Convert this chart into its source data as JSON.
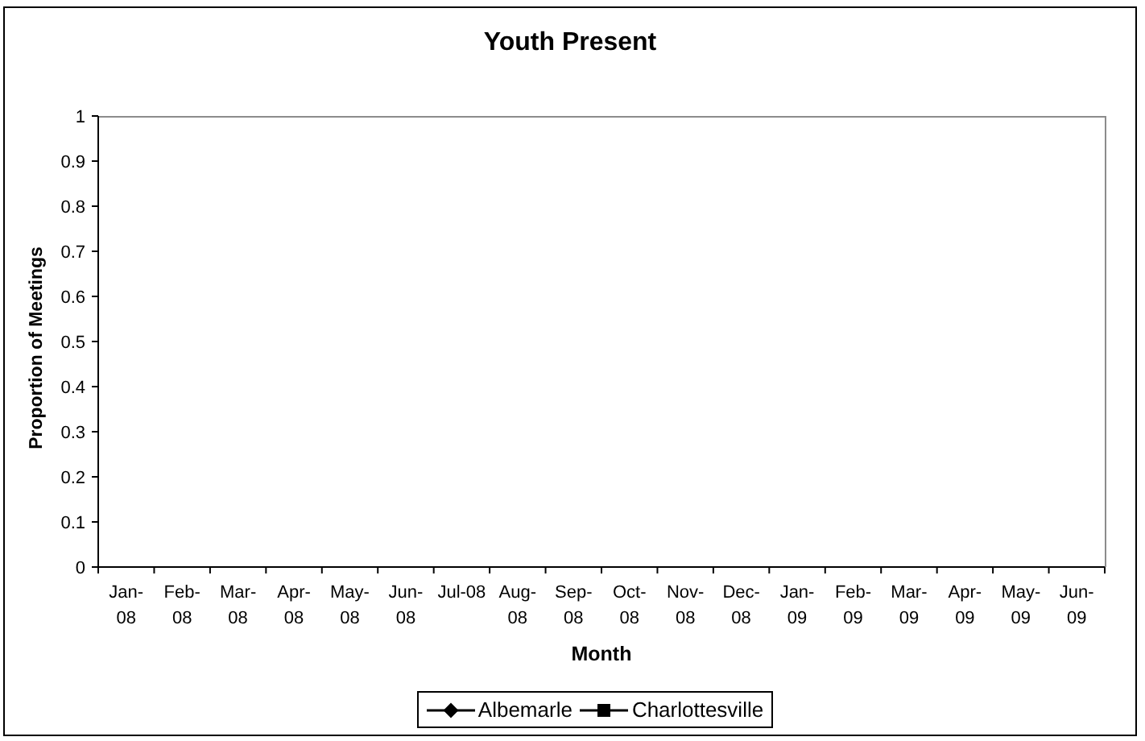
{
  "chart_data": {
    "type": "line",
    "title": "Youth Present",
    "xlabel": "Month",
    "ylabel": "Proportion of Meetings",
    "categories": [
      "Jan-08",
      "Feb-08",
      "Mar-08",
      "Apr-08",
      "May-08",
      "Jun-08",
      "Jul-08",
      "Aug-08",
      "Sep-08",
      "Oct-08",
      "Nov-08",
      "Dec-08",
      "Jan-09",
      "Feb-09",
      "Mar-09",
      "Apr-09",
      "May-09",
      "Jun-09"
    ],
    "series": [
      {
        "name": "Albemarle",
        "color": "#000000",
        "marker": "diamond",
        "values": [
          null,
          null,
          null,
          null,
          null,
          null,
          null,
          null,
          null,
          null,
          null,
          null,
          null,
          null,
          null,
          null,
          null,
          null
        ]
      },
      {
        "name": "Charlottesville",
        "color": "#000000",
        "marker": "square",
        "values": [
          null,
          null,
          null,
          null,
          null,
          null,
          null,
          null,
          null,
          null,
          null,
          null,
          null,
          null,
          null,
          null,
          null,
          null
        ]
      }
    ],
    "ylim": [
      0,
      1
    ],
    "yticks": [
      0,
      0.1,
      0.2,
      0.3,
      0.4,
      0.5,
      0.6,
      0.7,
      0.8,
      0.9,
      1
    ],
    "legend": "bottom"
  }
}
